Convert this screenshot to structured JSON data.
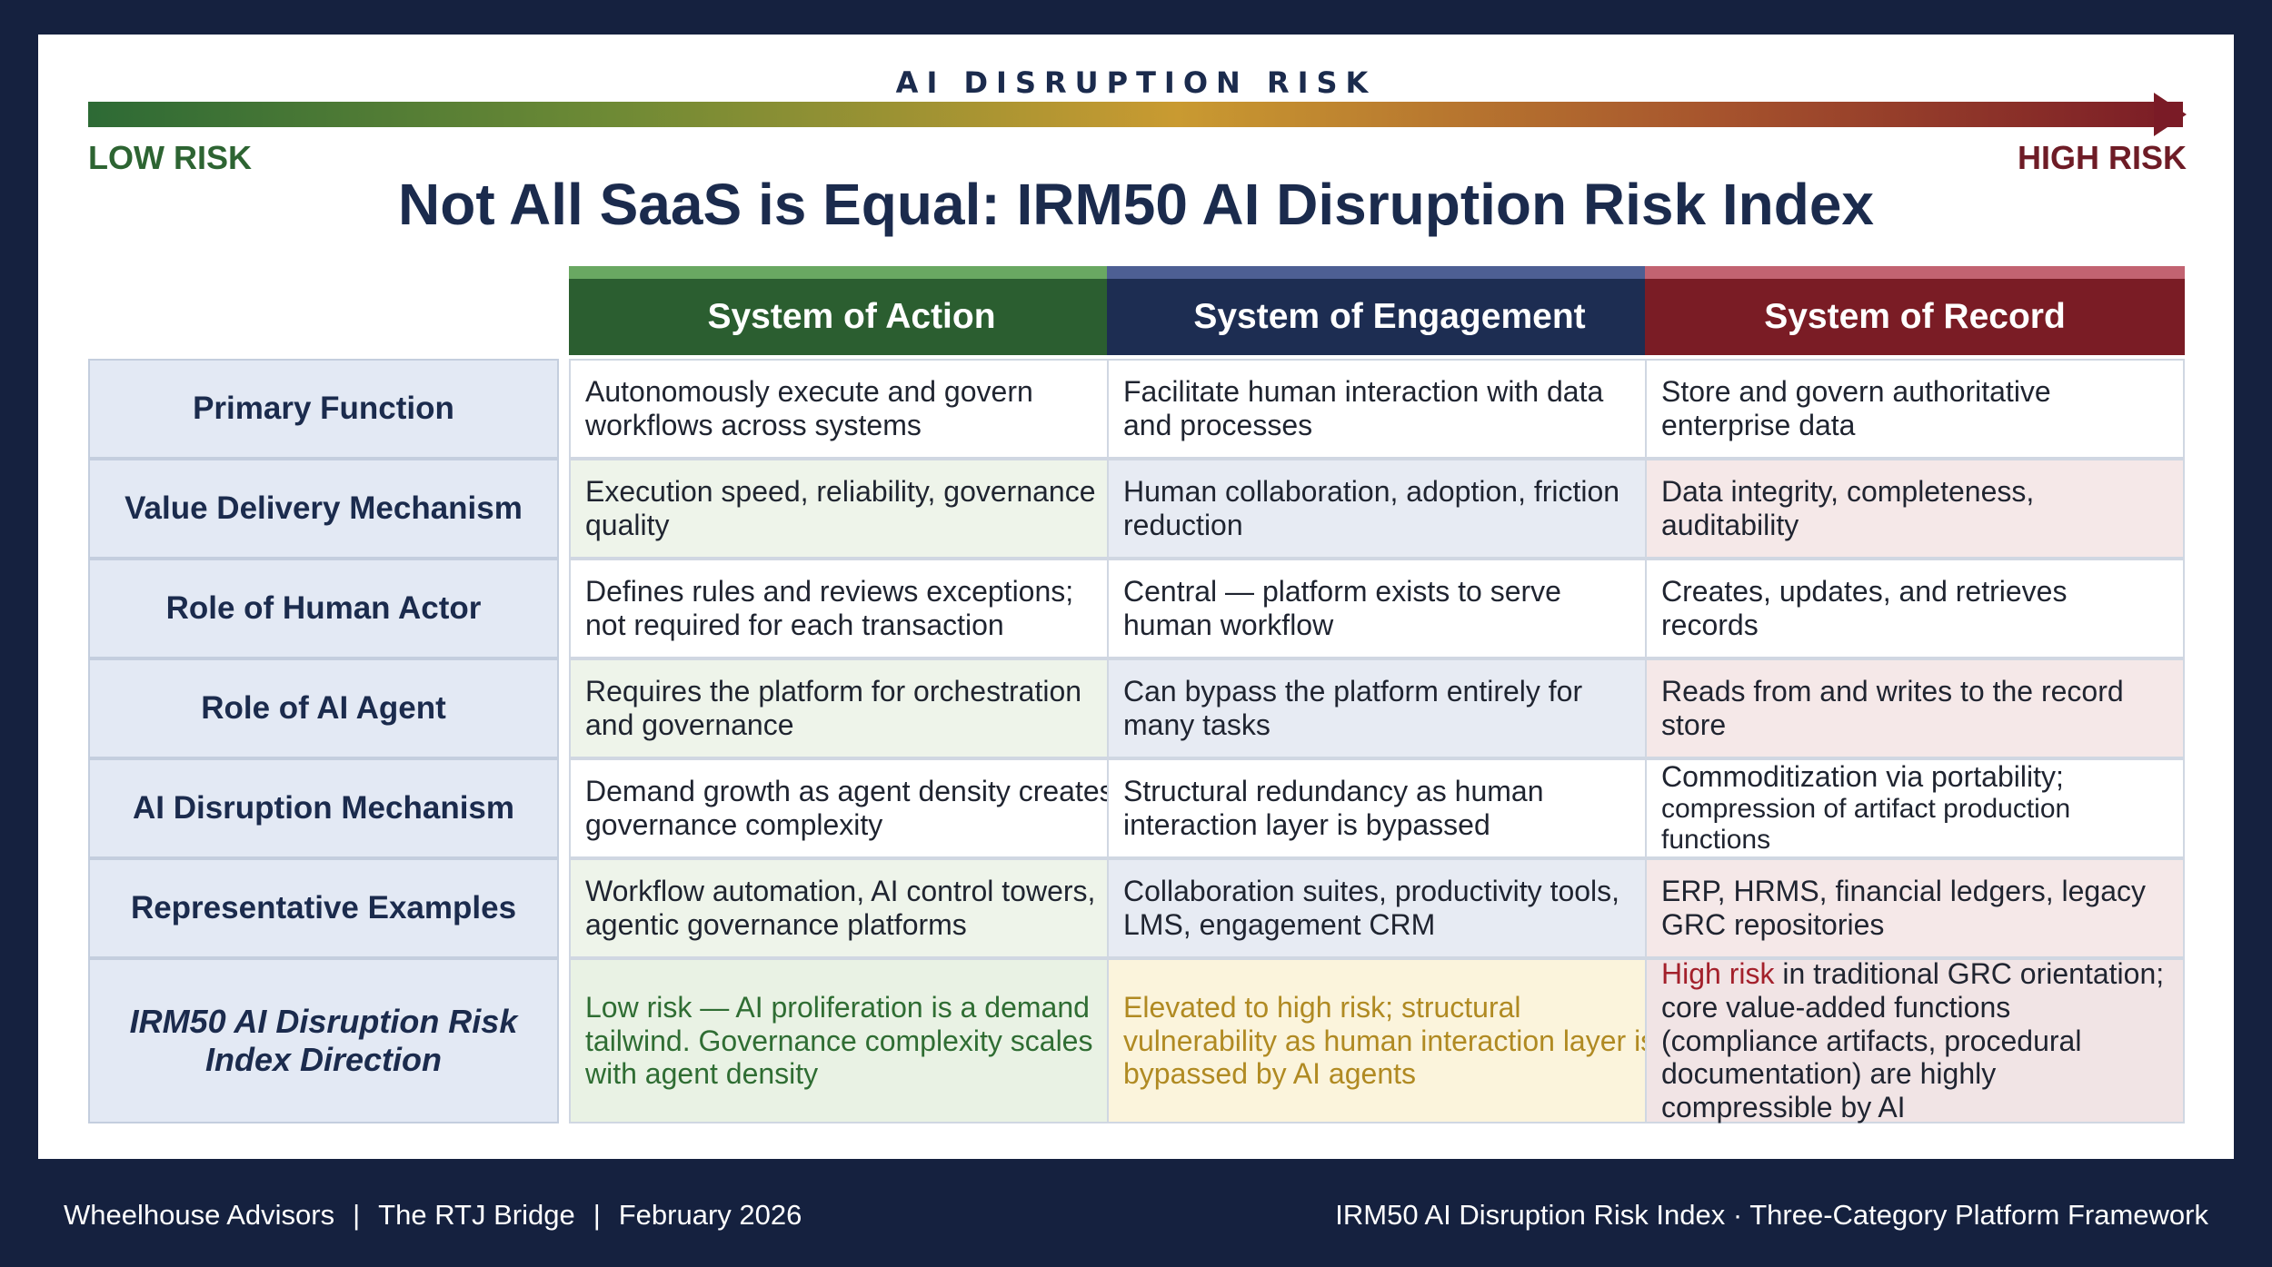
{
  "risk_scale": {
    "heading": "AI DISRUPTION RISK",
    "low_label": "LOW RISK",
    "high_label": "HIGH RISK",
    "gradient_colors": [
      "#2d6a35",
      "#c99a31",
      "#7a1b26"
    ]
  },
  "title": "Not All SaaS is Equal: IRM50 AI Disruption Risk Index",
  "columns": [
    {
      "label": "System of Action",
      "color": "#2b5e30"
    },
    {
      "label": "System of Engagement",
      "color": "#1d2d52"
    },
    {
      "label": "System of Record",
      "color": "#7a1c25"
    }
  ],
  "rows": [
    {
      "label": "Primary Function",
      "action": "Autonomously execute and govern workflows across systems",
      "engagement": "Facilitate human interaction with data and processes",
      "record": "Store and govern authoritative enterprise data"
    },
    {
      "label": "Value Delivery Mechanism",
      "action": "Execution speed, reliability, governance quality",
      "engagement": "Human collaboration, adoption, friction reduction",
      "record": "Data integrity, completeness, auditability"
    },
    {
      "label": "Role of Human Actor",
      "action": "Defines rules and reviews exceptions; not required for each transaction",
      "engagement": "Central — platform exists to serve human workflow",
      "record": "Creates, updates, and retrieves records"
    },
    {
      "label": "Role of AI Agent",
      "action": "Requires the platform for orchestration and governance",
      "engagement": "Can bypass the platform entirely for many tasks",
      "record": "Reads from and writes to the record store"
    },
    {
      "label": "AI Disruption Mechanism",
      "action": "Demand growth as agent density creates governance complexity",
      "engagement": "Structural redundancy as human interaction layer is bypassed",
      "record_line1": "Commoditization via portability;",
      "record_line2": "compression of artifact production functions"
    },
    {
      "label": "Representative Examples",
      "action": "Workflow automation, AI control towers, agentic governance platforms",
      "engagement": "Collaboration suites, productivity tools, LMS, engagement CRM",
      "record": "ERP, HRMS, financial ledgers, legacy GRC repositories"
    },
    {
      "label": "IRM50 AI Disruption Risk Index Direction",
      "action": "Low risk — AI proliferation is a demand tailwind. Governance complexity scales with agent density",
      "engagement": "Elevated to high risk; structural vulnerability as human interaction layer is bypassed by AI agents",
      "record_highlight": "High risk",
      "record_rest": " in traditional GRC orientation; core value-added functions (compliance artifacts, procedural documentation) are highly compressible by AI"
    }
  ],
  "footer": {
    "org": "Wheelhouse Advisors",
    "publication": "The RTJ Bridge",
    "date": "February 2026",
    "separator": "|",
    "right": "IRM50 AI Disruption Risk Index  · Three-Category Platform Framework"
  }
}
